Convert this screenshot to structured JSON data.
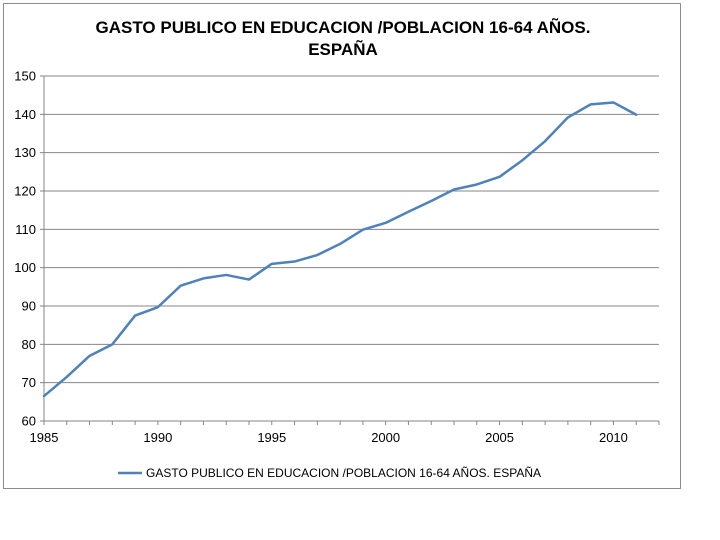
{
  "chart_data": {
    "type": "line",
    "title_line1": "GASTO PUBLICO EN EDUCACION /POBLACION 16-64 AÑOS.",
    "title_line2": "ESPAÑA",
    "xlabel": "",
    "ylabel": "",
    "xlim": [
      1985,
      2012
    ],
    "ylim": [
      60,
      150
    ],
    "x_ticks": [
      1985,
      1990,
      1995,
      2000,
      2005,
      2010
    ],
    "y_ticks": [
      60,
      70,
      80,
      90,
      100,
      110,
      120,
      130,
      140,
      150
    ],
    "grid": "horizontal",
    "legend_position": "bottom",
    "series": [
      {
        "name": "GASTO PUBLICO EN EDUCACION /POBLACION 16-64 AÑOS. ESPAÑA",
        "color": "#4f81bd",
        "x": [
          1985,
          1986,
          1987,
          1988,
          1989,
          1990,
          1991,
          1992,
          1993,
          1994,
          1995,
          1996,
          1997,
          1998,
          1999,
          2000,
          2001,
          2002,
          2003,
          2004,
          2005,
          2006,
          2007,
          2008,
          2009,
          2010,
          2011
        ],
        "y": [
          66.5,
          71.5,
          77,
          80,
          87.5,
          89.7,
          95.3,
          97.2,
          98.1,
          96.9,
          101,
          101.6,
          103.3,
          106.2,
          109.9,
          111.7,
          114.6,
          117.4,
          120.4,
          121.7,
          123.7,
          128,
          133,
          139.2,
          142.6,
          143.1,
          139.9
        ]
      }
    ]
  }
}
